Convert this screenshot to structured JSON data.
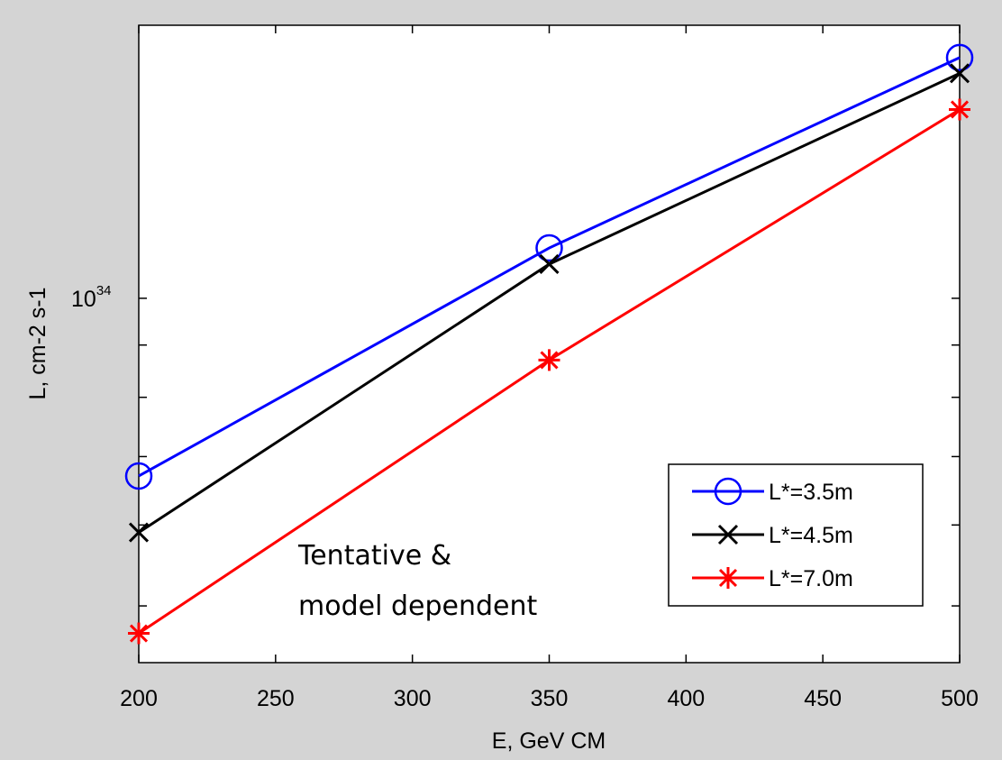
{
  "chart_data": {
    "type": "line",
    "title": "",
    "xlabel": "E, GeV CM",
    "ylabel": "L, cm-2 s-1",
    "y_scale": "log",
    "xlim": [
      200,
      500
    ],
    "ylim": [
      4.4e+33,
      1.85e+34
    ],
    "xticks": [
      200,
      250,
      300,
      350,
      400,
      450,
      500
    ],
    "yticks": [
      {
        "value": 1e+34,
        "label_base": "10",
        "label_exp": "34"
      }
    ],
    "grid": false,
    "legend_position": "bottom-right",
    "x": [
      200,
      350,
      500
    ],
    "series": [
      {
        "name": "L*=3.5m",
        "color": "#0000ff",
        "marker": "circle",
        "values": [
          6.7e+33,
          1.12e+34,
          1.72e+34
        ]
      },
      {
        "name": "L*=4.5m",
        "color": "#000000",
        "marker": "x",
        "values": [
          5.9e+33,
          1.08e+34,
          1.66e+34
        ]
      },
      {
        "name": "L*=7.0m",
        "color": "#ff0000",
        "marker": "asterisk",
        "values": [
          4.7e+33,
          8.7e+33,
          1.53e+34
        ]
      }
    ],
    "annotations": [
      "Tentative &",
      "model dependent"
    ]
  }
}
